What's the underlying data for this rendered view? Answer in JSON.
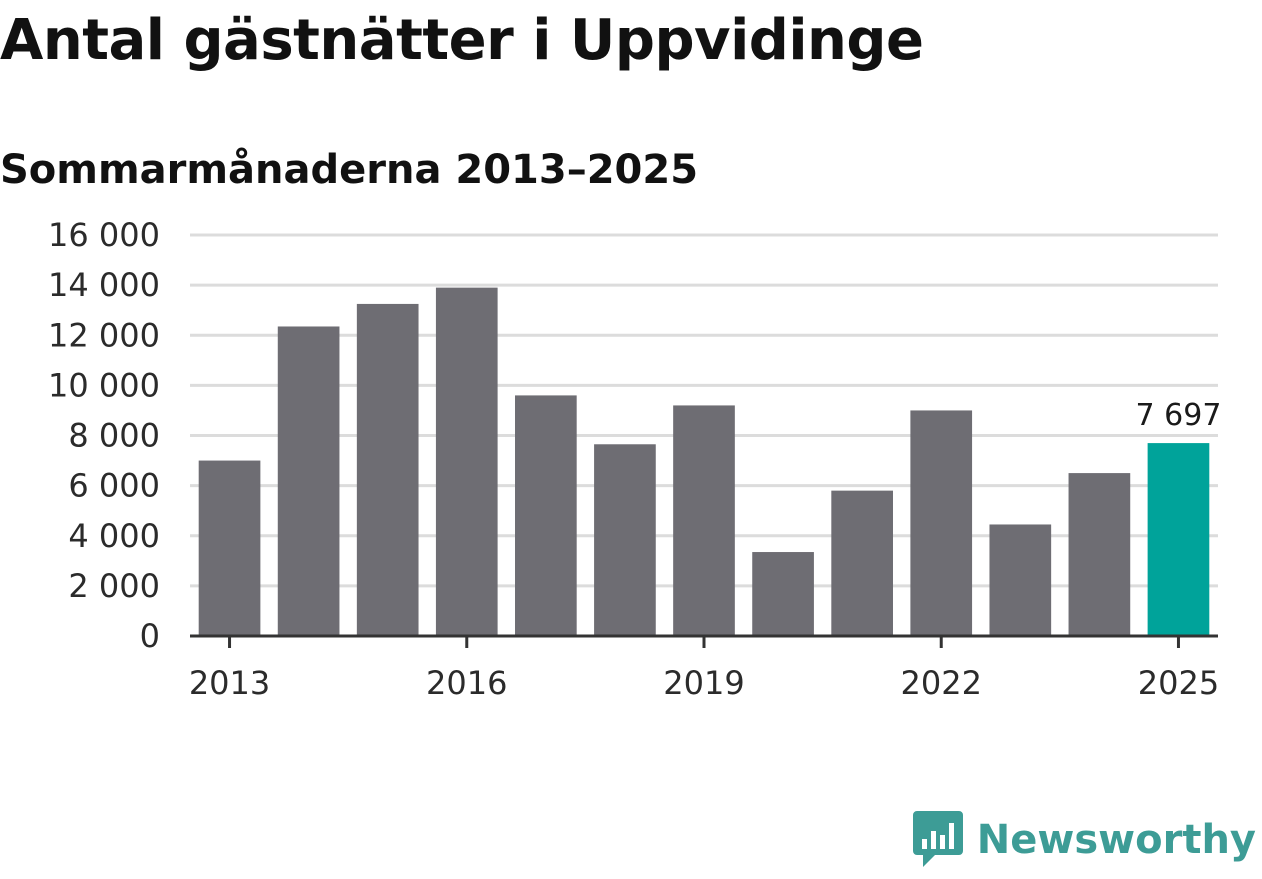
{
  "title": "Antal gästnätter i Uppvidinge",
  "subtitle": "Sommarmånaderna 2013–2025",
  "brand": {
    "name": "Newsworthy",
    "icon": "newsworthy-logo-icon",
    "color": "#3d9c96"
  },
  "colors": {
    "bar": "#6e6d73",
    "highlight": "#00a39a",
    "grid": "#dcdcdc",
    "axis": "#333333"
  },
  "chart_data": {
    "type": "bar",
    "x": [
      2013,
      2014,
      2015,
      2016,
      2017,
      2018,
      2019,
      2020,
      2021,
      2022,
      2023,
      2024,
      2025
    ],
    "values": [
      7000,
      12350,
      13250,
      13900,
      9600,
      7650,
      9200,
      3350,
      5800,
      9000,
      4450,
      6500,
      7697
    ],
    "highlight_index": 12,
    "highlight_label": "7 697",
    "ylim": [
      0,
      16000
    ],
    "yticks": [
      {
        "value": 0,
        "label": "0"
      },
      {
        "value": 2000,
        "label": "2 000"
      },
      {
        "value": 4000,
        "label": "4 000"
      },
      {
        "value": 6000,
        "label": "6 000"
      },
      {
        "value": 8000,
        "label": "8 000"
      },
      {
        "value": 10000,
        "label": "10 000"
      },
      {
        "value": 12000,
        "label": "12 000"
      },
      {
        "value": 14000,
        "label": "14 000"
      },
      {
        "value": 16000,
        "label": "16 000"
      }
    ],
    "xticks": [
      {
        "value": 2013,
        "label": "2013"
      },
      {
        "value": 2016,
        "label": "2016"
      },
      {
        "value": 2019,
        "label": "2019"
      },
      {
        "value": 2022,
        "label": "2022"
      },
      {
        "value": 2025,
        "label": "2025"
      }
    ],
    "grid": true,
    "xlabel": "",
    "ylabel": ""
  }
}
